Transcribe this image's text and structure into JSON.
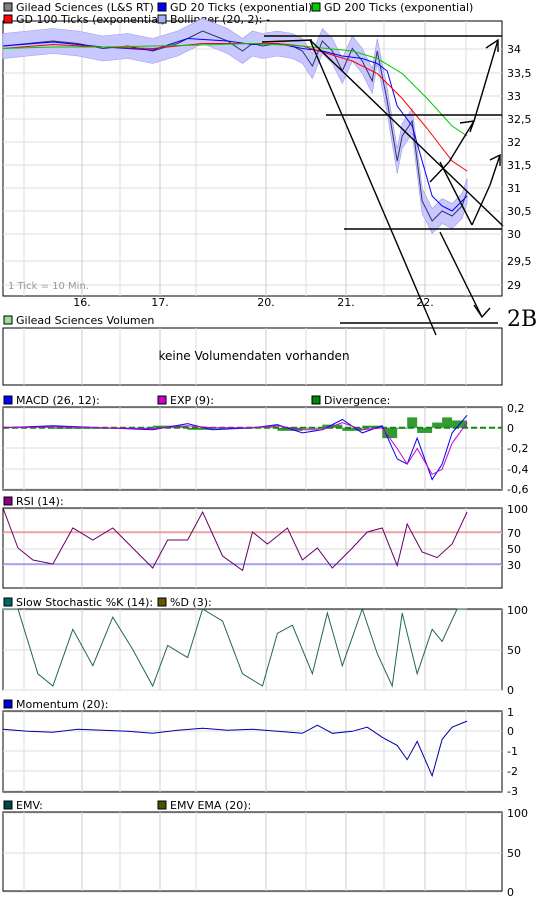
{
  "chart_data": [
    {
      "type": "line",
      "panel": "price",
      "legend": [
        {
          "name": "Gilead Sciences (L&S RT)",
          "color": "#808080"
        },
        {
          "name": "GD 20 Ticks (exponential)",
          "color": "#0000ff"
        },
        {
          "name": "GD 200 Ticks (exponential)",
          "color": "#00cc00"
        },
        {
          "name": "GD 100 Ticks (exponential)",
          "color": "#ff0000"
        },
        {
          "name": "Bollinger (20, 2):  -",
          "color": "#aaaaff"
        }
      ],
      "x_tick_labels": [
        "16.",
        "17.",
        "20.",
        "21.",
        "22."
      ],
      "y_tick_labels": [
        "34",
        "33,5",
        "33",
        "32,5",
        "32",
        "31,5",
        "31",
        "30,5",
        "30",
        "29,5",
        "29"
      ],
      "ylim": [
        28.8,
        34.3
      ],
      "note": "1 Tick = 10 Min.",
      "annotation": "2B",
      "series": [
        {
          "name": "Gilead Sciences (L&S RT)",
          "color": "#333366",
          "x": [
            0,
            0.05,
            0.1,
            0.15,
            0.2,
            0.25,
            0.3,
            0.35,
            0.37,
            0.4,
            0.45,
            0.48,
            0.5,
            0.52,
            0.55,
            0.58,
            0.6,
            0.62,
            0.64,
            0.66,
            0.68,
            0.7,
            0.72,
            0.74,
            0.75,
            0.77,
            0.79,
            0.8,
            0.82,
            0.84,
            0.86,
            0.88,
            0.9,
            0.92,
            0.93
          ],
          "y": [
            33.8,
            33.85,
            33.9,
            33.85,
            33.75,
            33.8,
            33.7,
            33.85,
            33.95,
            34.1,
            33.9,
            33.7,
            33.85,
            33.8,
            33.85,
            33.8,
            33.7,
            33.4,
            33.9,
            33.7,
            33.3,
            33.75,
            33.5,
            33.1,
            33.7,
            32.7,
            31.5,
            32.0,
            32.3,
            30.7,
            30.3,
            30.5,
            30.4,
            30.6,
            30.9
          ]
        },
        {
          "name": "GD 20 Ticks (exponential)",
          "color": "#0000ff",
          "x": [
            0,
            0.1,
            0.2,
            0.3,
            0.37,
            0.45,
            0.5,
            0.55,
            0.6,
            0.64,
            0.68,
            0.72,
            0.75,
            0.77,
            0.79,
            0.82,
            0.84,
            0.86,
            0.88,
            0.9,
            0.93
          ],
          "y": [
            33.8,
            33.88,
            33.78,
            33.72,
            33.95,
            33.9,
            33.83,
            33.85,
            33.75,
            33.7,
            33.6,
            33.55,
            33.45,
            33.3,
            32.6,
            32.2,
            31.5,
            30.8,
            30.6,
            30.5,
            30.8
          ]
        },
        {
          "name": "GD 100 Ticks (exponential)",
          "color": "#ff0000",
          "x": [
            0,
            0.1,
            0.2,
            0.3,
            0.4,
            0.5,
            0.55,
            0.6,
            0.65,
            0.7,
            0.75,
            0.8,
            0.85,
            0.9,
            0.93
          ],
          "y": [
            33.75,
            33.83,
            33.78,
            33.75,
            33.85,
            33.85,
            33.85,
            33.8,
            33.65,
            33.5,
            33.25,
            32.75,
            32.15,
            31.5,
            31.3
          ]
        },
        {
          "name": "GD 200 Ticks (exponential)",
          "color": "#00cc00",
          "x": [
            0,
            0.1,
            0.2,
            0.3,
            0.4,
            0.5,
            0.6,
            0.7,
            0.75,
            0.8,
            0.85,
            0.9,
            0.93
          ],
          "y": [
            33.75,
            33.78,
            33.78,
            33.8,
            33.82,
            33.85,
            33.8,
            33.7,
            33.55,
            33.25,
            32.75,
            32.2,
            32.0
          ]
        }
      ]
    },
    {
      "type": "bar",
      "panel": "volume",
      "legend": [
        {
          "name": "Gilead Sciences Volumen",
          "color": "#99dd99"
        }
      ],
      "empty_message": "keine Volumendaten vorhanden"
    },
    {
      "type": "line",
      "panel": "macd",
      "legend": [
        {
          "name": "MACD (26, 12):",
          "color": "#0000ff"
        },
        {
          "name": "EXP (9):",
          "color": "#cc00cc"
        },
        {
          "name": "Divergence:",
          "color": "#008800"
        }
      ],
      "y_tick_labels": [
        "0,2",
        "0",
        "-0,2",
        "-0,4",
        "-0,6"
      ],
      "ylim": [
        -0.6,
        0.2
      ],
      "series": [
        {
          "name": "MACD (26, 12):",
          "color": "#0000ff",
          "x": [
            0,
            0.1,
            0.2,
            0.3,
            0.37,
            0.42,
            0.5,
            0.55,
            0.6,
            0.64,
            0.68,
            0.72,
            0.76,
            0.79,
            0.81,
            0.83,
            0.86,
            0.88,
            0.9,
            0.93
          ],
          "y": [
            0.0,
            0.02,
            0.0,
            -0.02,
            0.04,
            -0.02,
            0.0,
            0.03,
            -0.05,
            -0.02,
            0.08,
            -0.05,
            0.02,
            -0.3,
            -0.35,
            -0.1,
            -0.5,
            -0.35,
            -0.05,
            0.12
          ]
        },
        {
          "name": "EXP (9):",
          "color": "#cc00cc",
          "x": [
            0,
            0.1,
            0.2,
            0.3,
            0.37,
            0.42,
            0.5,
            0.55,
            0.6,
            0.64,
            0.68,
            0.72,
            0.76,
            0.79,
            0.81,
            0.83,
            0.86,
            0.88,
            0.9,
            0.93
          ],
          "y": [
            0.0,
            0.01,
            0.0,
            -0.01,
            0.02,
            0.0,
            0.0,
            0.02,
            -0.02,
            -0.02,
            0.05,
            -0.02,
            0.0,
            -0.2,
            -0.35,
            -0.2,
            -0.45,
            -0.4,
            -0.15,
            0.05
          ]
        }
      ]
    },
    {
      "type": "line",
      "panel": "rsi",
      "legend": [
        {
          "name": "RSI (14):",
          "color": "#880088"
        }
      ],
      "y_tick_labels": [
        "100",
        "70",
        "50",
        "30"
      ],
      "ylim": [
        0,
        100
      ],
      "reference_lines": [
        70,
        30
      ],
      "series": [
        {
          "name": "RSI (14):",
          "color": "#660066",
          "x": [
            0,
            0.03,
            0.06,
            0.1,
            0.14,
            0.18,
            0.22,
            0.26,
            0.3,
            0.33,
            0.37,
            0.4,
            0.44,
            0.48,
            0.5,
            0.53,
            0.57,
            0.6,
            0.63,
            0.66,
            0.7,
            0.73,
            0.76,
            0.79,
            0.81,
            0.84,
            0.87,
            0.9,
            0.93
          ],
          "y": [
            100,
            50,
            35,
            30,
            75,
            60,
            75,
            50,
            25,
            60,
            60,
            95,
            40,
            22,
            70,
            55,
            75,
            35,
            50,
            25,
            50,
            70,
            75,
            28,
            80,
            45,
            38,
            55,
            95
          ]
        }
      ]
    },
    {
      "type": "line",
      "panel": "stochastic",
      "legend": [
        {
          "name": "Slow Stochastic %K (14):",
          "color": "#006666"
        },
        {
          "name": "%D (3):",
          "color": "#665500"
        }
      ],
      "y_tick_labels": [
        "100",
        "50",
        "0"
      ],
      "ylim": [
        0,
        100
      ],
      "series": [
        {
          "name": "Slow Stochastic %K (14):",
          "color": "#226655",
          "x": [
            0,
            0.03,
            0.07,
            0.1,
            0.14,
            0.18,
            0.22,
            0.26,
            0.3,
            0.33,
            0.37,
            0.4,
            0.44,
            0.48,
            0.52,
            0.55,
            0.58,
            0.62,
            0.65,
            0.68,
            0.72,
            0.75,
            0.78,
            0.8,
            0.83,
            0.86,
            0.88,
            0.91,
            0.93
          ],
          "y": [
            100,
            100,
            20,
            5,
            75,
            30,
            90,
            50,
            5,
            55,
            40,
            100,
            85,
            20,
            5,
            70,
            80,
            20,
            95,
            30,
            100,
            45,
            5,
            95,
            20,
            75,
            60,
            100,
            100
          ]
        }
      ]
    },
    {
      "type": "line",
      "panel": "momentum",
      "legend": [
        {
          "name": "Momentum (20):",
          "color": "#0000cc"
        }
      ],
      "y_tick_labels": [
        "1",
        "0",
        "-1",
        "-2",
        "-3"
      ],
      "ylim": [
        -3,
        1
      ],
      "series": [
        {
          "name": "Momentum (20):",
          "color": "#0000aa",
          "x": [
            0,
            0.05,
            0.1,
            0.15,
            0.2,
            0.25,
            0.3,
            0.35,
            0.4,
            0.45,
            0.5,
            0.55,
            0.6,
            0.63,
            0.66,
            0.7,
            0.73,
            0.76,
            0.79,
            0.81,
            0.83,
            0.86,
            0.88,
            0.9,
            0.93
          ],
          "y": [
            0.1,
            0.0,
            -0.05,
            0.1,
            0.05,
            0.0,
            -0.1,
            0.05,
            0.15,
            0.05,
            0.1,
            0.0,
            -0.1,
            0.3,
            -0.1,
            0.0,
            0.2,
            -0.3,
            -0.7,
            -1.4,
            -0.5,
            -2.2,
            -0.4,
            0.2,
            0.5
          ]
        }
      ]
    },
    {
      "type": "line",
      "panel": "emv",
      "legend": [
        {
          "name": "EMV:",
          "color": "#004444"
        },
        {
          "name": "EMV EMA (20):",
          "color": "#445500"
        }
      ],
      "y_tick_labels": [
        "100",
        "50",
        "0"
      ],
      "ylim": [
        0,
        100
      ],
      "series": []
    }
  ]
}
